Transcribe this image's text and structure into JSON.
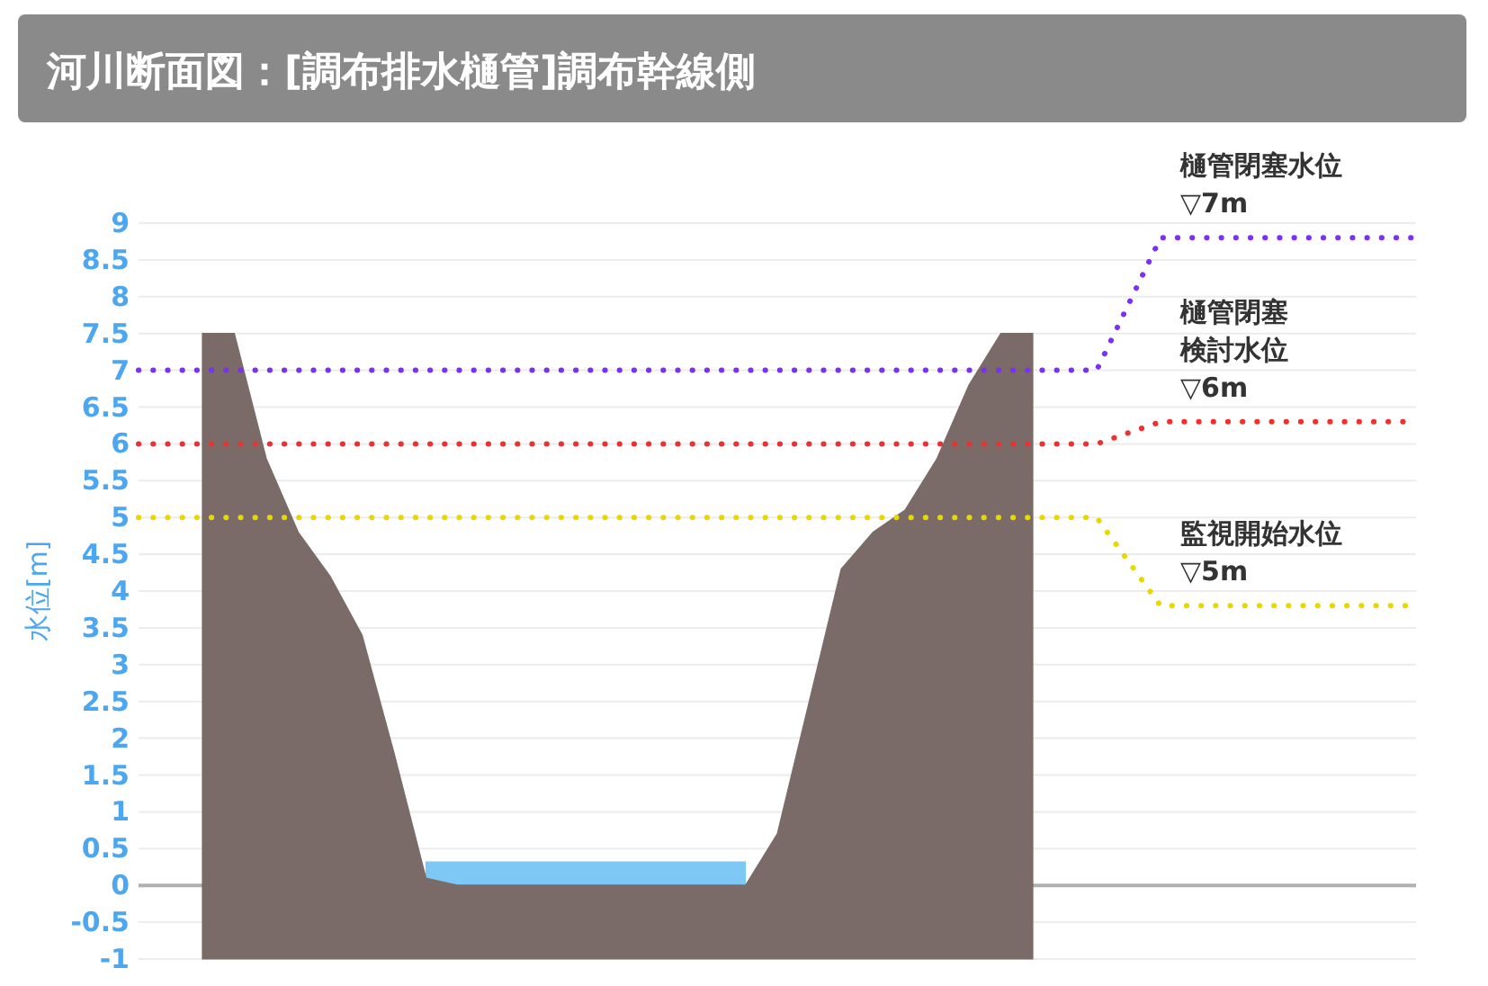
{
  "chart_data": {
    "type": "line",
    "title": "河川断面図：[調布排水樋管]調布幹線側",
    "ylabel": "水位[m]",
    "categories": [
      null,
      null,
      null,
      null,
      null,
      null,
      null,
      null,
      null,
      null,
      null,
      null,
      null,
      null,
      null,
      null,
      null,
      null,
      null,
      null,
      null,
      null,
      null,
      null,
      null,
      null,
      null,
      null,
      null,
      null,
      null,
      null,
      null,
      null,
      null,
      null,
      null,
      null,
      null,
      null,
      null
    ],
    "ylim": [
      -1,
      9
    ],
    "yticks": [
      -1,
      -0.5,
      0,
      0.5,
      1,
      1.5,
      2,
      2.5,
      3,
      3.5,
      4,
      4.5,
      5,
      5.5,
      6,
      6.5,
      7,
      7.5,
      8,
      8.5,
      9
    ],
    "grid": "y",
    "line_style": "dotted",
    "series": [
      {
        "type": "area",
        "color": "#7ec8f5",
        "values": [
          null,
          null,
          null,
          null,
          null,
          null,
          null,
          null,
          null,
          0.32,
          0.32,
          0.32,
          0.32,
          0.32,
          0.32,
          0.32,
          0.32,
          0.32,
          0.32,
          0.32,
          null,
          null,
          null,
          null,
          null,
          null,
          null,
          null,
          null,
          null,
          null,
          null,
          null,
          null,
          null,
          null,
          null,
          null,
          null,
          null,
          null
        ]
      },
      {
        "type": "area",
        "color": "#7a6b68",
        "values": [
          null,
          null,
          7.5,
          7.5,
          5.8,
          4.8,
          4.2,
          3.4,
          1.8,
          0.1,
          0,
          0,
          0,
          0,
          0,
          0,
          0,
          0,
          0,
          0,
          0.7,
          2.5,
          4.3,
          4.8,
          5.1,
          5.8,
          6.8,
          7.5,
          7.5,
          null,
          null,
          null,
          null,
          null,
          null,
          null,
          null,
          null,
          null,
          null,
          null
        ]
      },
      {
        "type": "area",
        "color": "#7a6b68",
        "values": [
          null,
          null,
          -1,
          -1,
          -1,
          -1,
          -1,
          -1,
          -1,
          -1,
          -1,
          -1,
          -1,
          -1,
          -1,
          -1,
          -1,
          -1,
          -1,
          -1,
          -1,
          -1,
          -1,
          -1,
          -1,
          -1,
          -1,
          -1,
          -1,
          null,
          null,
          null,
          null,
          null,
          null,
          null,
          null,
          null,
          null,
          null,
          null
        ]
      },
      {
        "name": "樋管閉塞水位▽7m",
        "color": "#7b2ff7",
        "values": [
          7,
          7,
          7,
          7,
          7,
          7,
          7,
          7,
          7,
          7,
          7,
          7,
          7,
          7,
          7,
          7,
          7,
          7,
          7,
          7,
          7,
          7,
          7,
          7,
          7,
          7,
          7,
          7,
          7,
          7,
          7,
          7.9,
          8.8,
          8.8,
          8.8,
          8.8,
          8.8,
          8.8,
          8.8,
          8.8,
          8.8
        ]
      },
      {
        "name": "樋管閉塞検討水位▽6m",
        "color": "#f03030",
        "values": [
          6,
          6,
          6,
          6,
          6,
          6,
          6,
          6,
          6,
          6,
          6,
          6,
          6,
          6,
          6,
          6,
          6,
          6,
          6,
          6,
          6,
          6,
          6,
          6,
          6,
          6,
          6,
          6,
          6,
          6,
          6,
          6.15,
          6.3,
          6.3,
          6.3,
          6.3,
          6.3,
          6.3,
          6.3,
          6.3,
          6.3
        ]
      },
      {
        "name": "監視開始水位▽5m",
        "color": "#e8d800",
        "values": [
          5,
          5,
          5,
          5,
          5,
          5,
          5,
          5,
          5,
          5,
          5,
          5,
          5,
          5,
          5,
          5,
          5,
          5,
          5,
          5,
          5,
          5,
          5,
          5,
          5,
          5,
          5,
          5,
          5,
          5,
          5,
          4.4,
          3.8,
          3.8,
          3.8,
          3.8,
          3.8,
          3.8,
          3.8,
          3.8,
          3.8
        ]
      }
    ]
  }
}
